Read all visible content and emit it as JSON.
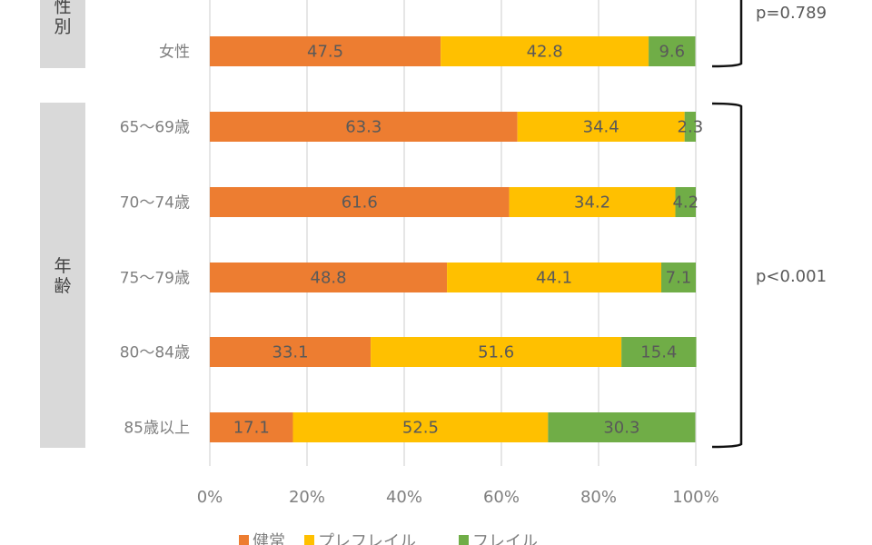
{
  "chart_data": {
    "type": "bar",
    "orientation": "horizontal",
    "stacked": true,
    "categories": [
      "女性",
      "65〜69歳",
      "70〜74歳",
      "75〜79歳",
      "80〜84歳",
      "85歳以上"
    ],
    "series": [
      {
        "name": "健常",
        "color": "#ED7D31",
        "values": [
          47.5,
          63.3,
          61.6,
          48.8,
          33.1,
          17.1
        ]
      },
      {
        "name": "プレフレイル",
        "color": "#FFC000",
        "values": [
          42.8,
          34.4,
          34.2,
          44.1,
          51.6,
          52.5
        ]
      },
      {
        "name": "フレイル",
        "color": "#70AD47",
        "values": [
          9.6,
          2.3,
          4.2,
          7.1,
          15.4,
          30.3
        ]
      }
    ],
    "xlim": [
      0,
      100
    ],
    "x_ticks": [
      "0%",
      "20%",
      "40%",
      "60%",
      "80%",
      "100%"
    ],
    "grid": true,
    "legend_position": "bottom",
    "groups": [
      {
        "label": "性別",
        "categories": [
          "女性"
        ],
        "p_value": "p=0.789"
      },
      {
        "label": "年齢",
        "categories": [
          "65〜69歳",
          "70〜74歳",
          "75〜79歳",
          "80〜84歳",
          "85歳以上"
        ],
        "p_value": "p<0.001"
      }
    ]
  }
}
